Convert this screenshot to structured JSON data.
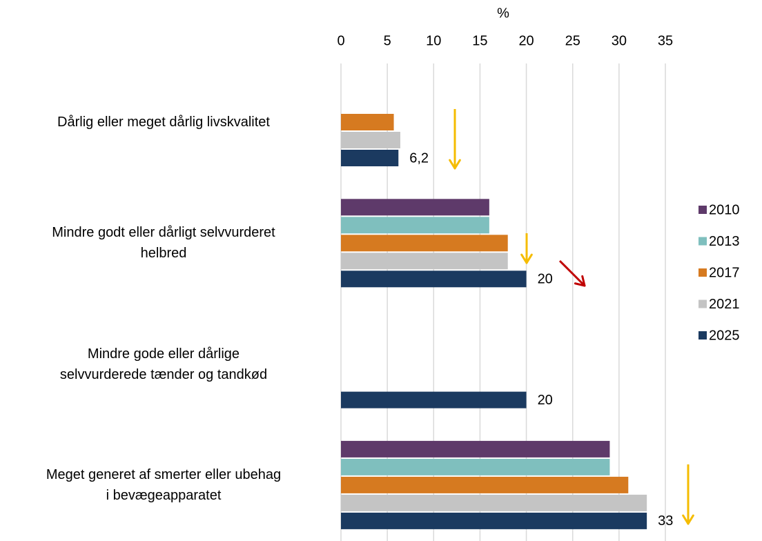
{
  "chart_data": {
    "type": "bar",
    "orientation": "horizontal",
    "xlabel": "%",
    "categories": [
      "Dårlig eller meget dårlig livskvalitet",
      "Mindre godt eller dårligt selvvurderet\nhelbred",
      "Mindre gode eller dårlige\nselvvurderede tænder og tandkød",
      "Meget generet af smerter eller ubehag\ni bevægeapparatet"
    ],
    "series": [
      {
        "name": "2010",
        "color": "#5e3a6a",
        "values": [
          null,
          16,
          null,
          29
        ]
      },
      {
        "name": "2013",
        "color": "#7fbfbe",
        "values": [
          null,
          16,
          null,
          29
        ]
      },
      {
        "name": "2017",
        "color": "#d67a20",
        "values": [
          5.7,
          18,
          null,
          31
        ]
      },
      {
        "name": "2021",
        "color": "#c4c4c4",
        "values": [
          6.4,
          18,
          null,
          33
        ]
      },
      {
        "name": "2025",
        "color": "#1b3a60",
        "values": [
          6.2,
          20,
          20,
          33
        ],
        "value_labels": [
          "6,2",
          "20",
          "20",
          "33"
        ]
      }
    ],
    "xlim": [
      0,
      35
    ],
    "xticks": [
      0,
      5,
      10,
      15,
      20,
      25,
      30,
      35
    ],
    "grid": true,
    "legend": "right"
  }
}
